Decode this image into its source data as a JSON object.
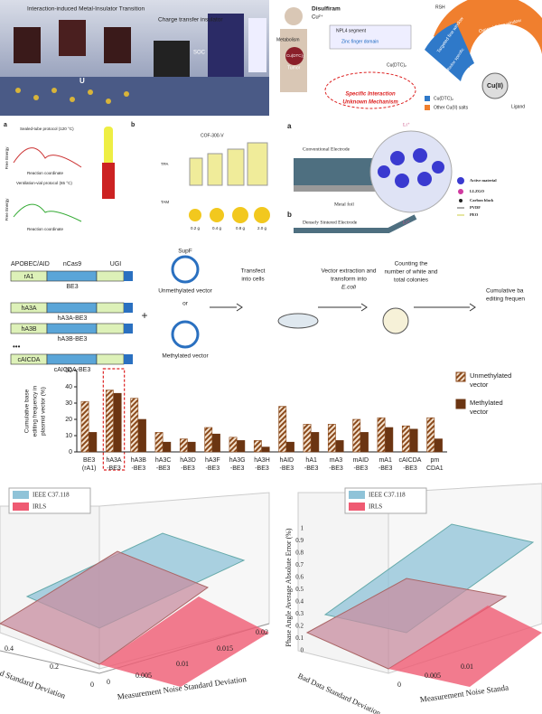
{
  "panels": {
    "physics": {
      "title": "Interaction-induced Metal-Insulator Transition",
      "subtitle": "Charge transfer insulator",
      "labels": [
        "U",
        "SOC"
      ]
    },
    "disulfiram": {
      "drug": "Disulfiram",
      "ion": "Cu²⁺",
      "metabolism": "Metabolism",
      "complex": "Cu(DTC)₂",
      "tumor": "Tumor",
      "segment": "NPL4 segment",
      "domain": "Zinc finger domain",
      "interaction": "Specific Interaction",
      "mechanism": "Unknown Mechanism"
    },
    "copper": {
      "reagent": "RSH",
      "windows": [
        "Targeted fine window",
        "Overoxidizing window"
      ],
      "modes": [
        "Redox specific",
        "Non-redox specific"
      ],
      "center": "Cu(II)",
      "ligand": "Ligand",
      "legend": [
        "Cu(DTC)₂",
        "Other Cu(II) salts"
      ]
    },
    "cof": {
      "panels": [
        "a",
        "b"
      ],
      "protocols": [
        "Sealed-tube protocol (120 °C)",
        "Ventilation-vial protocol (65 °C)"
      ],
      "y_label": "Free Energy",
      "x_label": "Reaction coordinate",
      "reagents": [
        "TPA",
        "TAM"
      ],
      "product": "COF-300-V",
      "masses": [
        "0.2 g",
        "0.4 g",
        "0.8 g",
        "2.0 g"
      ]
    },
    "electrode": {
      "panels": [
        "a",
        "b"
      ],
      "conventional": "Conventional Electrode",
      "foil": "Metal foil",
      "ion": "Li⁺",
      "dense": "Densely Sintered Electrode",
      "legend": [
        "Active material",
        "LLZGO",
        "Carbon black",
        "PVDF",
        "PEO"
      ]
    },
    "editing": {
      "schematic": {
        "domains": [
          "APOBEC/AID",
          "nCas9",
          "UGI"
        ],
        "deaminases": [
          "rA1",
          "hA3A",
          "hA3B",
          "cAICDA"
        ],
        "editors": [
          "BE3",
          "hA3A-BE3",
          "hA3B-BE3",
          "cAICDA-BE3"
        ],
        "ellipsis": "•••",
        "plus": "+",
        "plasmid": "SupF",
        "vectors": [
          "Unmethylated vector",
          "Methylated vector"
        ],
        "or": "or",
        "steps": [
          [
            "Transfect",
            "into cells"
          ],
          [
            "Vector extraction and",
            "transform into"
          ],
          [
            "Counting the",
            "number of white and",
            "total colonies"
          ],
          [
            "Cumulative ba",
            "editing frequen"
          ]
        ],
        "ecoli": "E.coli"
      },
      "chart": {
        "type": "bar",
        "y_label": [
          "Cumulative base",
          "editing frequency in",
          "plasmid vector (%)"
        ],
        "categories": [
          "BE3 (rA1)",
          "hA3A -BE3",
          "hA3B -BE3",
          "hA3C -BE3",
          "hA3D -BE3",
          "hA3F -BE3",
          "hA3G -BE3",
          "hA3H -BE3",
          "hAID -BE3",
          "hA1 -BE3",
          "mA3 -BE3",
          "mAID -BE3",
          "mA1 -BE3",
          "cAICDA -BE3",
          "pm CDA1"
        ],
        "series": [
          {
            "name": "Unmethylated vector",
            "color": "#8b4a1c",
            "hatch": true,
            "values": [
              31,
              38,
              33,
              12,
              8,
              15,
              9,
              7,
              28,
              17,
              17,
              20,
              21,
              16,
              21
            ]
          },
          {
            "name": "Methylated vector",
            "color": "#6b3512",
            "hatch": false,
            "values": [
              12,
              36,
              20,
              6,
              6,
              11,
              7,
              3,
              6,
              12,
              7,
              12,
              15,
              14,
              8
            ]
          }
        ],
        "ylim": [
          0,
          50
        ],
        "yticks": [
          0,
          10,
          20,
          30,
          40,
          50
        ],
        "highlight": 1
      }
    },
    "surfaces": {
      "legend": [
        "IEEE C37.118",
        "IRLS"
      ],
      "x_label": "Measurement Noise Standard Deviation",
      "y_label": "Bad Data Standard Deviation",
      "z_label": "Phase Angle Average Absolute Error (%)",
      "x_ticks": [
        "0",
        "0.005",
        "0.01",
        "0.015",
        "0.02"
      ],
      "y_ticks": [
        "0.4",
        "0.2",
        "0"
      ],
      "z_ticks": [
        "0",
        "0.1",
        "0.2",
        "0.3",
        "0.4",
        "0.5",
        "0.6",
        "0.7",
        "0.8",
        "0.9",
        "1"
      ],
      "y_label_cut": "d Standard Deviation",
      "x_label_cut": "Measurement Noise Standa"
    }
  }
}
